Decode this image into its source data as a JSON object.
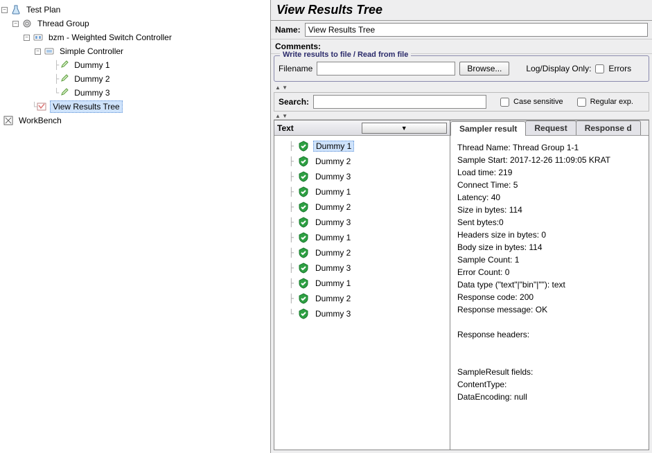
{
  "tree": {
    "testPlan": "Test Plan",
    "threadGroup": "Thread Group",
    "switchController": "bzm - Weighted Switch Controller",
    "simpleController": "Simple Controller",
    "dummy1": "Dummy 1",
    "dummy2": "Dummy 2",
    "dummy3": "Dummy 3",
    "viewResultsTree": "View Results Tree",
    "workBench": "WorkBench"
  },
  "header": {
    "title": "View Results Tree"
  },
  "nameRow": {
    "label": "Name:",
    "value": "View Results Tree"
  },
  "commentsRow": {
    "label": "Comments:"
  },
  "fileSection": {
    "title": "Write results to file / Read from file",
    "filenameLabel": "Filename",
    "browse": "Browse...",
    "logDisplayOnly": "Log/Display Only:",
    "errors": "Errors"
  },
  "searchRow": {
    "label": "Search:",
    "caseSensitive": "Case sensitive",
    "regularExp": "Regular exp."
  },
  "resultsLeft": {
    "header": "Text",
    "items": [
      "Dummy 1",
      "Dummy 2",
      "Dummy 3",
      "Dummy 1",
      "Dummy 2",
      "Dummy 3",
      "Dummy 1",
      "Dummy 2",
      "Dummy 3",
      "Dummy 1",
      "Dummy 2",
      "Dummy 3"
    ],
    "selectedIndex": 0
  },
  "tabs": {
    "sampler": "Sampler result",
    "request": "Request",
    "response": "Response d"
  },
  "detail": {
    "threadName": "Thread Name: Thread Group 1-1",
    "sampleStart": "Sample Start: 2017-12-26 11:09:05 KRAT",
    "loadTime": "Load time: 219",
    "connectTime": "Connect Time: 5",
    "latency": "Latency: 40",
    "sizeBytes": "Size in bytes: 114",
    "sentBytes": "Sent bytes:0",
    "headersSize": "Headers size in bytes: 0",
    "bodySize": "Body size in bytes: 114",
    "sampleCount": "Sample Count: 1",
    "errorCount": "Error Count: 0",
    "dataType": "Data type (\"text\"|\"bin\"|\"\"): text",
    "responseCode": "Response code: 200",
    "responseMessage": "Response message: OK",
    "responseHeaders": "Response headers:",
    "sampleResultFields": "SampleResult fields:",
    "contentType": "ContentType:",
    "dataEncoding": "DataEncoding: null"
  },
  "colors": {
    "selection": "#cfe3fb",
    "panelBg": "#eeeeef",
    "successGreen": "#2ea043"
  }
}
